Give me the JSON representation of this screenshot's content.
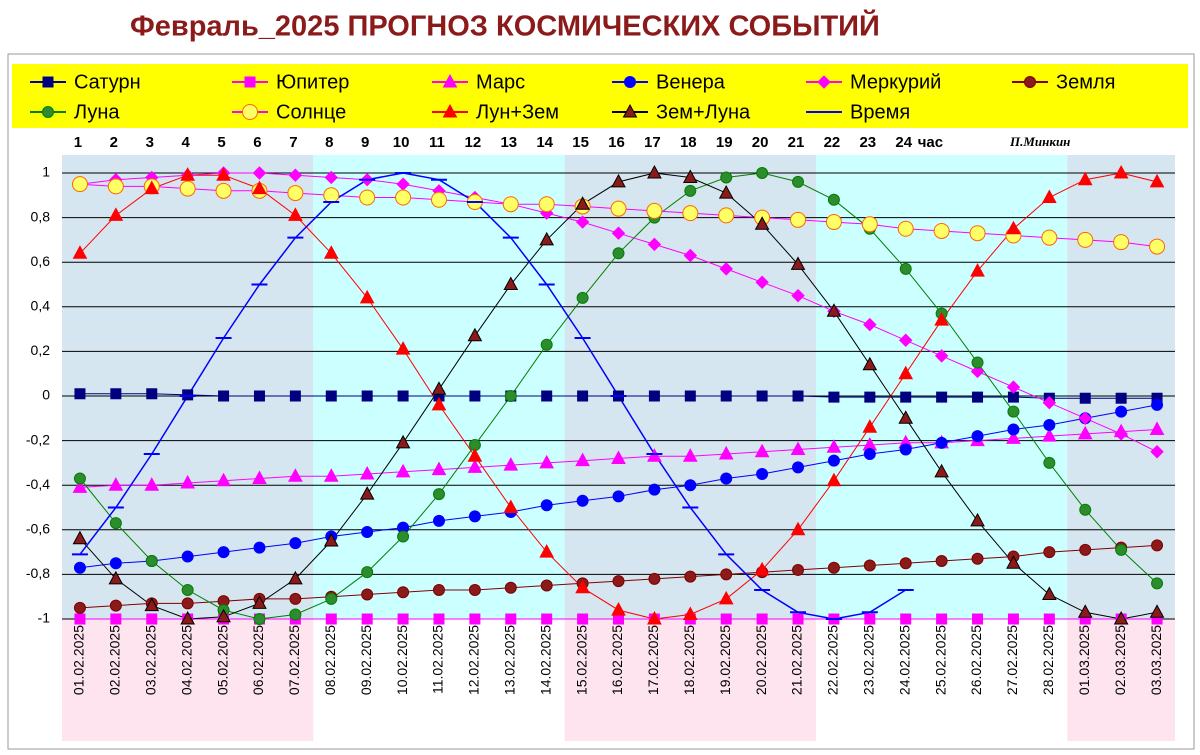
{
  "chart_data": {
    "type": "line",
    "title": "Февраль_2025 ПРОГНОЗ КОСМИЧЕСКИХ СОБЫТИЙ",
    "author": "П.Минкин",
    "hour_labels": [
      "1",
      "2",
      "3",
      "4",
      "5",
      "6",
      "7",
      "8",
      "9",
      "10",
      "11",
      "12",
      "13",
      "14",
      "15",
      "16",
      "17",
      "18",
      "19",
      "20",
      "21",
      "22",
      "23",
      "24"
    ],
    "hour_unit": "час",
    "categories": [
      "01.02.2025",
      "02.02.2025",
      "03.02.2025",
      "04.02.2025",
      "05.02.2025",
      "06.02.2025",
      "07.02.2025",
      "08.02.2025",
      "09.02.2025",
      "10.02.2025",
      "11.02.2025",
      "12.02.2025",
      "13.02.2025",
      "14.02.2025",
      "15.02.2025",
      "16.02.2025",
      "17.02.2025",
      "18.02.2025",
      "19.02.2025",
      "20.02.2025",
      "21.02.2025",
      "22.02.2025",
      "23.02.2025",
      "24.02.2025",
      "25.02.2025",
      "26.02.2025",
      "27.02.2025",
      "28.02.2025",
      "01.03.2025",
      "02.03.2025",
      "03.03.2025"
    ],
    "ylim": [
      -1,
      1
    ],
    "yticks": [
      1,
      {
        "value": 0.8,
        "label": "0,8"
      },
      {
        "value": 0.6,
        "label": "0,6"
      },
      {
        "value": 0.4,
        "label": "0,4"
      },
      {
        "value": 0.2,
        "label": "0,2"
      },
      0,
      {
        "value": -0.2,
        "label": "-0,2"
      },
      {
        "value": -0.4,
        "label": "-0,4"
      },
      {
        "value": -0.6,
        "label": "-0,6"
      },
      {
        "value": -0.8,
        "label": "-0,8"
      },
      -1
    ],
    "grid": true,
    "legend": "top",
    "series": [
      {
        "name": "Сатурн",
        "color": "#000080",
        "line_color": "#000080",
        "marker": "square",
        "values": [
          0.01,
          0.01,
          0.01,
          0.005,
          0,
          0,
          0,
          0,
          0,
          0,
          0,
          0,
          0,
          0,
          0,
          0,
          0,
          0,
          0,
          0,
          0,
          -0.005,
          -0.005,
          -0.005,
          -0.005,
          -0.005,
          -0.005,
          -0.01,
          -0.01,
          -0.01,
          -0.01
        ]
      },
      {
        "name": "Юпитер",
        "color": "#ff00ff",
        "line_color": "#ff00ff",
        "marker": "square",
        "values": [
          -1,
          -1,
          -1,
          -1,
          -1,
          -1,
          -1,
          -1,
          -1,
          -1,
          -1,
          -1,
          -1,
          -1,
          -1,
          -1,
          -1,
          -1,
          -1,
          -1,
          -1,
          -1,
          -1,
          -1,
          -1,
          -1,
          -1,
          -1,
          -1,
          -1,
          -1
        ]
      },
      {
        "name": "Марс",
        "color": "#ff00ff",
        "line_color": "#ff00ff",
        "marker": "triangle",
        "values": [
          -0.41,
          -0.4,
          -0.4,
          -0.39,
          -0.38,
          -0.37,
          -0.36,
          -0.36,
          -0.35,
          -0.34,
          -0.33,
          -0.32,
          -0.31,
          -0.3,
          -0.29,
          -0.28,
          -0.27,
          -0.27,
          -0.26,
          -0.25,
          -0.24,
          -0.23,
          -0.22,
          -0.21,
          -0.21,
          -0.2,
          -0.19,
          -0.18,
          -0.17,
          -0.16,
          -0.15
        ]
      },
      {
        "name": "Венера",
        "color": "#0000ff",
        "line_color": "#0000ff",
        "marker": "circle",
        "values": [
          -0.77,
          -0.75,
          -0.74,
          -0.72,
          -0.7,
          -0.68,
          -0.66,
          -0.63,
          -0.61,
          -0.59,
          -0.56,
          -0.54,
          -0.52,
          -0.49,
          -0.47,
          -0.45,
          -0.42,
          -0.4,
          -0.37,
          -0.35,
          -0.32,
          -0.29,
          -0.26,
          -0.24,
          -0.21,
          -0.18,
          -0.15,
          -0.13,
          -0.1,
          -0.07,
          -0.04
        ]
      },
      {
        "name": "Меркурий",
        "color": "#ff00ff",
        "line_color": "#ff00ff",
        "marker": "diamond",
        "values": [
          0.95,
          0.97,
          0.98,
          0.99,
          1.0,
          1.0,
          0.99,
          0.98,
          0.97,
          0.95,
          0.92,
          0.89,
          0.86,
          0.82,
          0.78,
          0.73,
          0.68,
          0.63,
          0.57,
          0.51,
          0.45,
          0.38,
          0.32,
          0.25,
          0.18,
          0.11,
          0.04,
          -0.03,
          -0.1,
          -0.17,
          -0.25
        ]
      },
      {
        "name": "Земля",
        "color": "#8b1a1a",
        "line_color": "#800000",
        "marker": "circle",
        "values": [
          -0.95,
          -0.94,
          -0.93,
          -0.93,
          -0.92,
          -0.91,
          -0.91,
          -0.9,
          -0.89,
          -0.88,
          -0.87,
          -0.87,
          -0.86,
          -0.85,
          -0.84,
          -0.83,
          -0.82,
          -0.81,
          -0.8,
          -0.79,
          -0.78,
          -0.77,
          -0.76,
          -0.75,
          -0.74,
          -0.73,
          -0.72,
          -0.7,
          -0.69,
          -0.68,
          -0.67
        ]
      },
      {
        "name": "Луна",
        "color": "#2e8b2e",
        "line_color": "#008000",
        "marker": "circle",
        "values": [
          -0.37,
          -0.57,
          -0.74,
          -0.87,
          -0.96,
          -1.0,
          -0.98,
          -0.91,
          -0.79,
          -0.63,
          -0.44,
          -0.22,
          0.0,
          0.23,
          0.44,
          0.64,
          0.8,
          0.92,
          0.98,
          1.0,
          0.96,
          0.88,
          0.75,
          0.57,
          0.37,
          0.15,
          -0.07,
          -0.3,
          -0.51,
          -0.69,
          -0.84
        ]
      },
      {
        "name": "Солнце",
        "color": "#ffff66",
        "line_color": "#ff00ff",
        "marker": "circle",
        "values": [
          0.95,
          0.94,
          0.94,
          0.93,
          0.92,
          0.92,
          0.91,
          0.9,
          0.89,
          0.89,
          0.88,
          0.87,
          0.86,
          0.86,
          0.85,
          0.84,
          0.83,
          0.82,
          0.81,
          0.8,
          0.79,
          0.78,
          0.77,
          0.75,
          0.74,
          0.73,
          0.72,
          0.71,
          0.7,
          0.69,
          0.67
        ]
      },
      {
        "name": "Лун+Зем",
        "color": "#ff0000",
        "line_color": "#ff0000",
        "marker": "triangle",
        "values": [
          0.64,
          0.81,
          0.93,
          0.99,
          0.99,
          0.93,
          0.81,
          0.64,
          0.44,
          0.21,
          -0.04,
          -0.27,
          -0.5,
          -0.7,
          -0.86,
          -0.96,
          -1.0,
          -0.98,
          -0.91,
          -0.78,
          -0.6,
          -0.38,
          -0.14,
          0.1,
          0.34,
          0.56,
          0.75,
          0.89,
          0.97,
          1.0,
          0.96
        ]
      },
      {
        "name": "Зем+Луна",
        "color": "#8b1a1a",
        "line_color": "#000000",
        "marker": "triangle",
        "values": [
          -0.64,
          -0.82,
          -0.94,
          -1.0,
          -0.99,
          -0.93,
          -0.82,
          -0.65,
          -0.44,
          -0.21,
          0.03,
          0.27,
          0.5,
          0.7,
          0.86,
          0.96,
          1.0,
          0.98,
          0.91,
          0.77,
          0.59,
          0.38,
          0.14,
          -0.1,
          -0.34,
          -0.56,
          -0.75,
          -0.89,
          -0.97,
          -1.0,
          -0.97
        ]
      },
      {
        "name": "Время",
        "color": "#0000ff",
        "line_color": "#0000ff",
        "marker": "dash",
        "values": [
          -0.71,
          -0.5,
          -0.26,
          0.0,
          0.26,
          0.5,
          0.71,
          0.87,
          0.97,
          1.0,
          0.97,
          0.87,
          0.71,
          0.5,
          0.26,
          0.0,
          -0.26,
          -0.5,
          -0.71,
          -0.87,
          -0.97,
          -1.0,
          -0.97,
          -0.87,
          null,
          null,
          null,
          null,
          null,
          null,
          null
        ]
      }
    ]
  }
}
